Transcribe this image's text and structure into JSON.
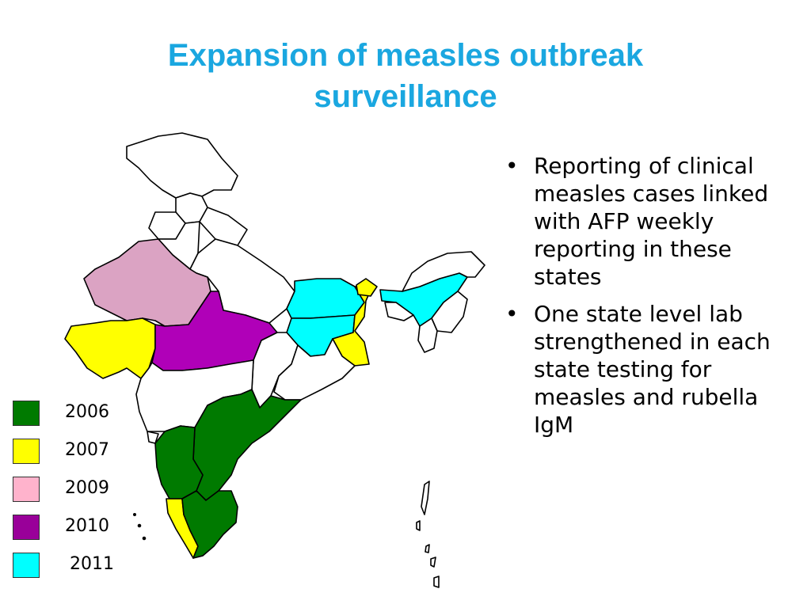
{
  "title": {
    "line1": "Expansion of measles outbreak",
    "line2": "surveillance"
  },
  "bullets": [
    {
      "text": "Reporting of clinical measles cases linked with AFP weekly reporting in these states"
    },
    {
      "text": "One state level lab strengthened in each state testing for measles and rubella IgM"
    }
  ],
  "legend": [
    {
      "label": "2006",
      "color": "#007a00"
    },
    {
      "label": "2007",
      "color": "#ffff00"
    },
    {
      "label": "2009",
      "color": "#ffb3cc"
    },
    {
      "label": "2010",
      "color": "#990099"
    },
    {
      "label": "2011",
      "color": "#00ffff"
    }
  ],
  "colors": {
    "title": "#1aa7e0",
    "y2006": "#007a00",
    "y2007": "#ffff00",
    "y2009": "#dba3c3",
    "y2010": "#b000b8",
    "y2011": "#00ffff",
    "unmarked": "#ffffff",
    "outline": "#000000"
  }
}
